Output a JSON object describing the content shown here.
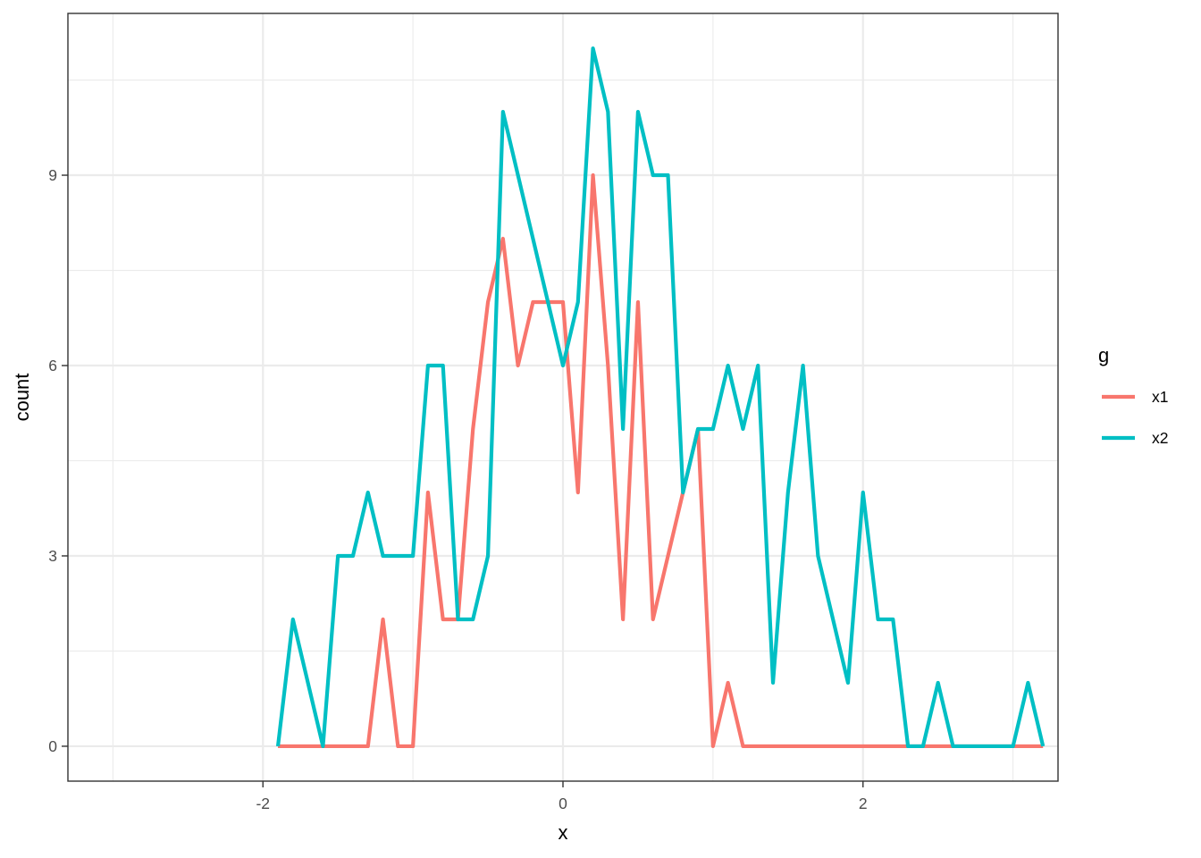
{
  "chart_data": {
    "type": "line",
    "xlabel": "x",
    "ylabel": "count",
    "xlim": [
      -3.3,
      3.3
    ],
    "ylim": [
      -0.55,
      11.55
    ],
    "x_ticks": [
      -2,
      0,
      2
    ],
    "x_tick_labels": [
      "-2",
      "0",
      "2"
    ],
    "x_minor_ticks": [
      -3,
      -1,
      1,
      3
    ],
    "y_ticks": [
      0,
      3,
      6,
      9
    ],
    "y_tick_labels": [
      "0",
      "3",
      "6",
      "9"
    ],
    "y_minor_ticks": [
      1.5,
      4.5,
      7.5,
      10.5
    ],
    "grid": true,
    "legend": {
      "title": "g",
      "position": "right"
    },
    "series": [
      {
        "name": "x1",
        "color": "#F8766D",
        "points": [
          [
            -1.9,
            0
          ],
          [
            -1.8,
            0
          ],
          [
            -1.7,
            0
          ],
          [
            -1.6,
            0
          ],
          [
            -1.5,
            0
          ],
          [
            -1.4,
            0
          ],
          [
            -1.3,
            0
          ],
          [
            -1.2,
            2
          ],
          [
            -1.1,
            0
          ],
          [
            -1.0,
            0
          ],
          [
            -0.9,
            4
          ],
          [
            -0.8,
            2
          ],
          [
            -0.7,
            2
          ],
          [
            -0.6,
            5
          ],
          [
            -0.5,
            7
          ],
          [
            -0.4,
            8
          ],
          [
            -0.3,
            6
          ],
          [
            -0.2,
            7
          ],
          [
            -0.1,
            7
          ],
          [
            0.0,
            7
          ],
          [
            0.1,
            4
          ],
          [
            0.2,
            9
          ],
          [
            0.3,
            6
          ],
          [
            0.4,
            2
          ],
          [
            0.5,
            7
          ],
          [
            0.6,
            2
          ],
          [
            0.7,
            3
          ],
          [
            0.8,
            4
          ],
          [
            0.9,
            5
          ],
          [
            1.0,
            0
          ],
          [
            1.1,
            1
          ],
          [
            1.2,
            0
          ],
          [
            1.3,
            0
          ],
          [
            1.4,
            0
          ],
          [
            1.5,
            0
          ],
          [
            1.6,
            0
          ],
          [
            1.7,
            0
          ],
          [
            1.8,
            0
          ],
          [
            1.9,
            0
          ],
          [
            2.0,
            0
          ],
          [
            2.1,
            0
          ],
          [
            2.2,
            0
          ],
          [
            2.3,
            0
          ],
          [
            2.4,
            0
          ],
          [
            2.5,
            0
          ],
          [
            2.6,
            0
          ],
          [
            2.7,
            0
          ],
          [
            2.8,
            0
          ],
          [
            2.9,
            0
          ],
          [
            3.0,
            0
          ],
          [
            3.1,
            0
          ],
          [
            3.2,
            0
          ]
        ]
      },
      {
        "name": "x2",
        "color": "#00BFC4",
        "points": [
          [
            -1.9,
            0
          ],
          [
            -1.8,
            2
          ],
          [
            -1.7,
            1
          ],
          [
            -1.6,
            0
          ],
          [
            -1.5,
            3
          ],
          [
            -1.4,
            3
          ],
          [
            -1.3,
            4
          ],
          [
            -1.2,
            3
          ],
          [
            -1.1,
            3
          ],
          [
            -1.0,
            3
          ],
          [
            -0.9,
            6
          ],
          [
            -0.8,
            6
          ],
          [
            -0.7,
            2
          ],
          [
            -0.6,
            2
          ],
          [
            -0.5,
            3
          ],
          [
            -0.4,
            10
          ],
          [
            -0.3,
            9
          ],
          [
            -0.2,
            8
          ],
          [
            -0.1,
            7
          ],
          [
            0.0,
            6
          ],
          [
            0.1,
            7
          ],
          [
            0.2,
            11
          ],
          [
            0.3,
            10
          ],
          [
            0.4,
            5
          ],
          [
            0.5,
            10
          ],
          [
            0.6,
            9
          ],
          [
            0.7,
            9
          ],
          [
            0.8,
            4
          ],
          [
            0.9,
            5
          ],
          [
            1.0,
            5
          ],
          [
            1.1,
            6
          ],
          [
            1.2,
            5
          ],
          [
            1.3,
            6
          ],
          [
            1.4,
            1
          ],
          [
            1.5,
            4
          ],
          [
            1.6,
            6
          ],
          [
            1.7,
            3
          ],
          [
            1.8,
            2
          ],
          [
            1.9,
            1
          ],
          [
            2.0,
            4
          ],
          [
            2.1,
            2
          ],
          [
            2.2,
            2
          ],
          [
            2.3,
            0
          ],
          [
            2.4,
            0
          ],
          [
            2.5,
            1
          ],
          [
            2.6,
            0
          ],
          [
            2.7,
            0
          ],
          [
            2.8,
            0
          ],
          [
            2.9,
            0
          ],
          [
            3.0,
            0
          ],
          [
            3.1,
            1
          ],
          [
            3.2,
            0
          ]
        ]
      }
    ]
  }
}
